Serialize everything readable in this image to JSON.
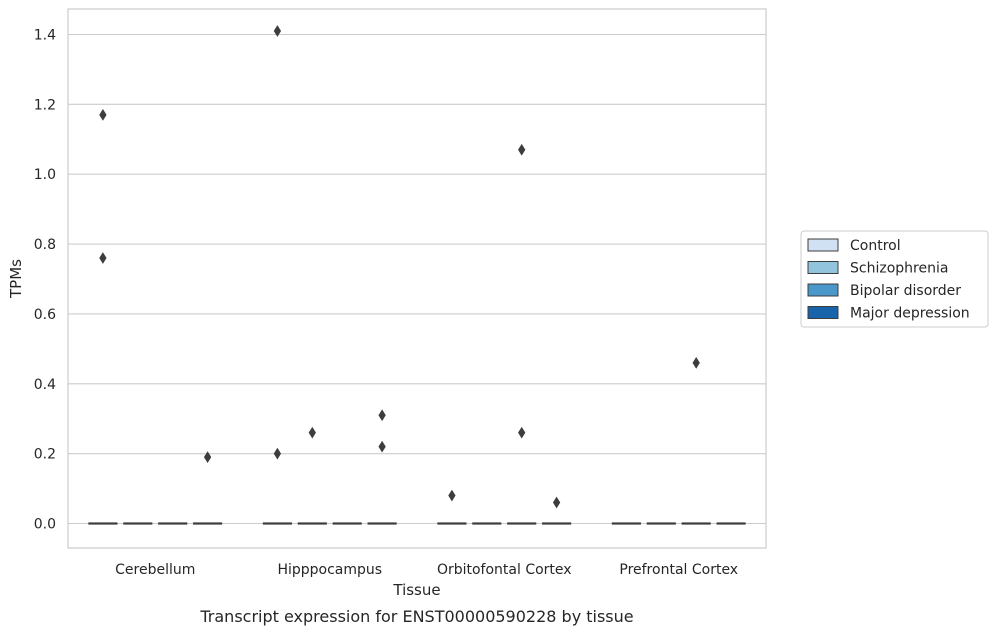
{
  "chart_data": {
    "type": "box",
    "title": "",
    "caption": "Transcript expression for ENST00000590228 by tissue",
    "xlabel": "Tissue",
    "ylabel": "TPMs",
    "categories": [
      "Cerebellum",
      "Hipppocampus",
      "Orbitofontal Cortex",
      "Prefrontal Cortex"
    ],
    "ylim": [
      -0.07,
      1.48
    ],
    "yticks": [
      0.0,
      0.2,
      0.4,
      0.6,
      0.8,
      1.0,
      1.2,
      1.4
    ],
    "grid": "horizontal",
    "legend_position": "right",
    "series": [
      {
        "name": "Control",
        "color": "#cfe1f2",
        "boxes": [
          {
            "category": "Cerebellum",
            "q1": 0,
            "median": 0,
            "q3": 0,
            "whisker_low": 0,
            "whisker_high": 0,
            "outliers": [
              1.17,
              0.76
            ]
          },
          {
            "category": "Hipppocampus",
            "q1": 0,
            "median": 0,
            "q3": 0,
            "whisker_low": 0,
            "whisker_high": 0,
            "outliers": [
              1.41,
              0.2
            ]
          },
          {
            "category": "Orbitofontal Cortex",
            "q1": 0,
            "median": 0,
            "q3": 0,
            "whisker_low": 0,
            "whisker_high": 0,
            "outliers": [
              0.08
            ]
          },
          {
            "category": "Prefrontal Cortex",
            "q1": 0,
            "median": 0,
            "q3": 0,
            "whisker_low": 0,
            "whisker_high": 0,
            "outliers": []
          }
        ]
      },
      {
        "name": "Schizophrenia",
        "color": "#93c4de",
        "boxes": [
          {
            "category": "Cerebellum",
            "q1": 0,
            "median": 0,
            "q3": 0,
            "whisker_low": 0,
            "whisker_high": 0,
            "outliers": []
          },
          {
            "category": "Hipppocampus",
            "q1": 0,
            "median": 0,
            "q3": 0,
            "whisker_low": 0,
            "whisker_high": 0,
            "outliers": [
              0.26
            ]
          },
          {
            "category": "Orbitofontal Cortex",
            "q1": 0,
            "median": 0,
            "q3": 0,
            "whisker_low": 0,
            "whisker_high": 0,
            "outliers": []
          },
          {
            "category": "Prefrontal Cortex",
            "q1": 0,
            "median": 0,
            "q3": 0,
            "whisker_low": 0,
            "whisker_high": 0,
            "outliers": []
          }
        ]
      },
      {
        "name": "Bipolar disorder",
        "color": "#4a98c9",
        "boxes": [
          {
            "category": "Cerebellum",
            "q1": 0,
            "median": 0,
            "q3": 0,
            "whisker_low": 0,
            "whisker_high": 0,
            "outliers": []
          },
          {
            "category": "Hipppocampus",
            "q1": 0,
            "median": 0,
            "q3": 0,
            "whisker_low": 0,
            "whisker_high": 0,
            "outliers": []
          },
          {
            "category": "Orbitofontal Cortex",
            "q1": 0,
            "median": 0,
            "q3": 0,
            "whisker_low": 0,
            "whisker_high": 0,
            "outliers": [
              1.07,
              0.26
            ]
          },
          {
            "category": "Prefrontal Cortex",
            "q1": 0,
            "median": 0,
            "q3": 0,
            "whisker_low": 0,
            "whisker_high": 0,
            "outliers": [
              0.46
            ]
          }
        ]
      },
      {
        "name": "Major depression",
        "color": "#1764ab",
        "boxes": [
          {
            "category": "Cerebellum",
            "q1": 0,
            "median": 0,
            "q3": 0,
            "whisker_low": 0,
            "whisker_high": 0,
            "outliers": [
              0.19
            ]
          },
          {
            "category": "Hipppocampus",
            "q1": 0,
            "median": 0,
            "q3": 0,
            "whisker_low": 0,
            "whisker_high": 0,
            "outliers": [
              0.31,
              0.22
            ]
          },
          {
            "category": "Orbitofontal Cortex",
            "q1": 0,
            "median": 0,
            "q3": 0,
            "whisker_low": 0,
            "whisker_high": 0,
            "outliers": [
              0.06
            ]
          },
          {
            "category": "Prefrontal Cortex",
            "q1": 0,
            "median": 0,
            "q3": 0,
            "whisker_low": 0,
            "whisker_high": 0,
            "outliers": []
          }
        ]
      }
    ]
  }
}
